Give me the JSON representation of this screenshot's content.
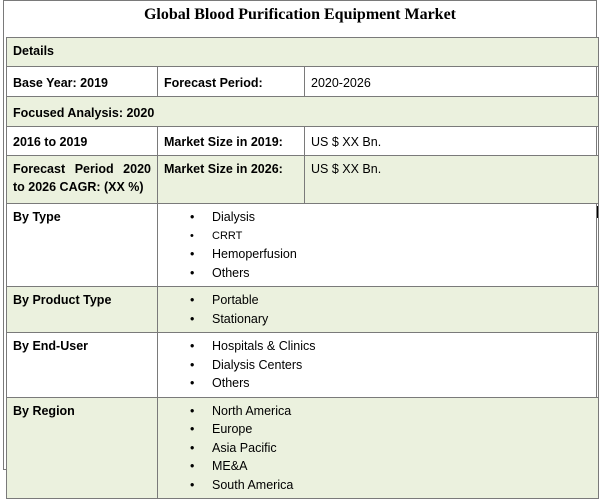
{
  "title": "Global Blood Purification Equipment Market",
  "details_label": "Details",
  "base_year": "Base Year: 2019",
  "forecast_period_label": "Forecast Period:",
  "forecast_period_value": "2020-2026",
  "focused_analysis": "Focused Analysis: 2020",
  "history_range": "2016 to 2019",
  "market_size_2019_label": "Market Size in 2019:",
  "market_size_2019_value": "US $ XX Bn.",
  "cagr_label": "Forecast Period 2020 to 2026 CAGR: (XX %)",
  "market_size_2026_label": "Market Size in 2026:",
  "market_size_2026_value": "US $ XX Bn.",
  "bullet_char": "•",
  "segments": {
    "by_type": {
      "label": "By Type",
      "items": [
        "Dialysis",
        "CRRT",
        "Hemoperfusion",
        "Others"
      ]
    },
    "by_product_type": {
      "label": "By Product Type",
      "items": [
        "Portable",
        "Stationary"
      ]
    },
    "by_end_user": {
      "label": "By End-User",
      "items": [
        "Hospitals & Clinics",
        "Dialysis Centers",
        "Others"
      ]
    },
    "by_region": {
      "label": "By Region",
      "items": [
        "North America",
        "Europe",
        "Asia Pacific",
        "ME&A",
        "South America"
      ]
    }
  },
  "colors": {
    "row_highlight": "#ebf1de",
    "border": "#7a7a7a"
  }
}
